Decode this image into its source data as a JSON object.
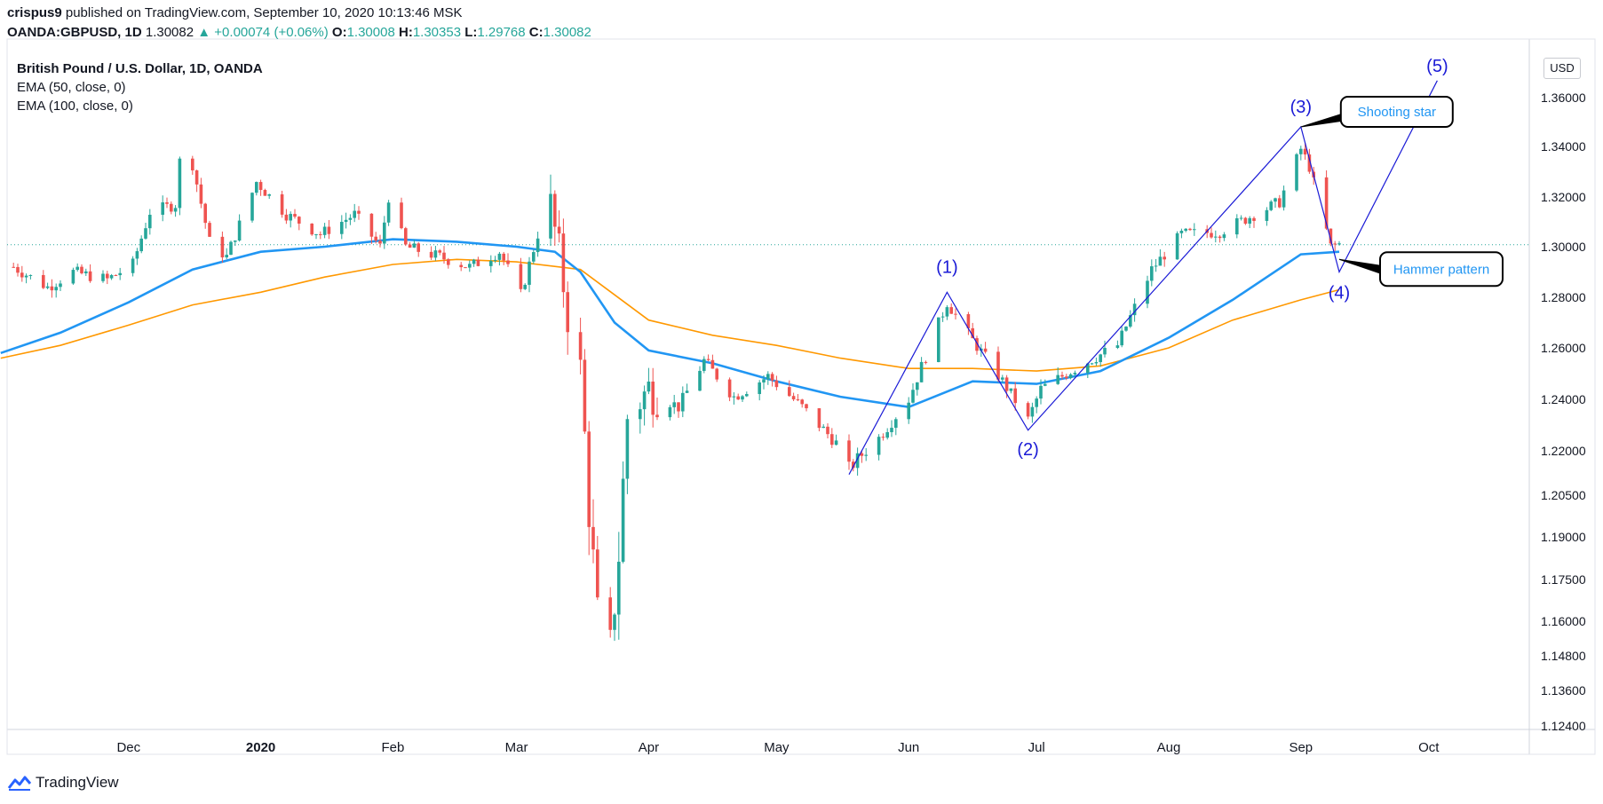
{
  "header": {
    "author": "crispus9",
    "published_text": "published on TradingView.com, September 10, 2020 10:13:46 MSK",
    "symbol": "OANDA:GBPUSD, 1D",
    "last": "1.30082",
    "change": "+0.00074 (+0.06%)",
    "o_label": "O:",
    "o": "1.30008",
    "h_label": "H:",
    "h": "1.30353",
    "l_label": "L:",
    "l": "1.29768",
    "c_label": "C:",
    "c": "1.30082"
  },
  "legend": {
    "title": "British Pound / U.S. Dollar, 1D, OANDA",
    "ema50": "EMA (50, close, 0)",
    "ema100": "EMA (100, close, 0)"
  },
  "currency_button": "USD",
  "brand": "TradingView",
  "colors": {
    "bull": "#26a69a",
    "bear": "#ef5350",
    "ema50": "#2196f3",
    "ema100": "#ff9800",
    "wave": "#1a1ad6",
    "callout_text": "#2196f3"
  },
  "chart_data": {
    "type": "candlestick",
    "y_ticks": [
      "1.36000",
      "1.34000",
      "1.32000",
      "1.30000",
      "1.28000",
      "1.26000",
      "1.24000",
      "1.22000",
      "1.20500",
      "1.19000",
      "1.17500",
      "1.16000",
      "1.14800",
      "1.13600",
      "1.12400"
    ],
    "x_ticks": [
      "Dec",
      "2020",
      "Feb",
      "Mar",
      "Apr",
      "May",
      "Jun",
      "Jul",
      "Aug",
      "Sep",
      "Oct"
    ],
    "close_path": [
      [
        "2019-11-04",
        1.292
      ],
      [
        "2019-11-12",
        1.284
      ],
      [
        "2019-11-18",
        1.29
      ],
      [
        "2019-11-26",
        1.287
      ],
      [
        "2019-12-02",
        1.293
      ],
      [
        "2019-12-06",
        1.314
      ],
      [
        "2019-12-12",
        1.317
      ],
      [
        "2019-12-13",
        1.334
      ],
      [
        "2019-12-16",
        1.333
      ],
      [
        "2019-12-20",
        1.302
      ],
      [
        "2019-12-24",
        1.296
      ],
      [
        "2019-12-31",
        1.326
      ],
      [
        "2020-01-07",
        1.313
      ],
      [
        "2020-01-15",
        1.305
      ],
      [
        "2020-01-23",
        1.313
      ],
      [
        "2020-01-29",
        1.3
      ],
      [
        "2020-01-31",
        1.32
      ],
      [
        "2020-02-04",
        1.3
      ],
      [
        "2020-02-12",
        1.296
      ],
      [
        "2020-02-19",
        1.292
      ],
      [
        "2020-02-26",
        1.298
      ],
      [
        "2020-03-02",
        1.281
      ],
      [
        "2020-03-06",
        1.305
      ],
      [
        "2020-03-09",
        1.316
      ],
      [
        "2020-03-11",
        1.297
      ],
      [
        "2020-03-13",
        1.273
      ],
      [
        "2020-03-16",
        1.251
      ],
      [
        "2020-03-18",
        1.2
      ],
      [
        "2020-03-20",
        1.162
      ],
      [
        "2020-03-23",
        1.15
      ],
      [
        "2020-03-25",
        1.184
      ],
      [
        "2020-03-27",
        1.233
      ],
      [
        "2020-04-01",
        1.244
      ],
      [
        "2020-04-08",
        1.237
      ],
      [
        "2020-04-14",
        1.255
      ],
      [
        "2020-04-21",
        1.241
      ],
      [
        "2020-04-29",
        1.249
      ],
      [
        "2020-05-07",
        1.237
      ],
      [
        "2020-05-15",
        1.223
      ],
      [
        "2020-05-18",
        1.214
      ],
      [
        "2020-05-25",
        1.225
      ],
      [
        "2020-06-01",
        1.24
      ],
      [
        "2020-06-10",
        1.278
      ],
      [
        "2020-06-16",
        1.263
      ],
      [
        "2020-06-23",
        1.247
      ],
      [
        "2020-06-29",
        1.232
      ],
      [
        "2020-07-02",
        1.244
      ],
      [
        "2020-07-10",
        1.252
      ],
      [
        "2020-07-20",
        1.261
      ],
      [
        "2020-07-28",
        1.291
      ],
      [
        "2020-08-04",
        1.305
      ],
      [
        "2020-08-13",
        1.306
      ],
      [
        "2020-08-20",
        1.312
      ],
      [
        "2020-08-27",
        1.318
      ],
      [
        "2020-09-01",
        1.339
      ],
      [
        "2020-09-03",
        1.332
      ],
      [
        "2020-09-08",
        1.3
      ],
      [
        "2020-09-10",
        1.301
      ]
    ],
    "ema50_path": [
      [
        "2019-11-01",
        1.258
      ],
      [
        "2019-11-15",
        1.266
      ],
      [
        "2019-12-01",
        1.278
      ],
      [
        "2019-12-16",
        1.291
      ],
      [
        "2020-01-01",
        1.298
      ],
      [
        "2020-01-16",
        1.3
      ],
      [
        "2020-02-01",
        1.303
      ],
      [
        "2020-02-16",
        1.302
      ],
      [
        "2020-03-01",
        1.3
      ],
      [
        "2020-03-10",
        1.298
      ],
      [
        "2020-03-16",
        1.29
      ],
      [
        "2020-03-24",
        1.27
      ],
      [
        "2020-04-01",
        1.259
      ],
      [
        "2020-04-16",
        1.254
      ],
      [
        "2020-05-01",
        1.247
      ],
      [
        "2020-05-16",
        1.241
      ],
      [
        "2020-06-01",
        1.237
      ],
      [
        "2020-06-16",
        1.247
      ],
      [
        "2020-07-01",
        1.246
      ],
      [
        "2020-07-16",
        1.251
      ],
      [
        "2020-08-01",
        1.264
      ],
      [
        "2020-08-16",
        1.279
      ],
      [
        "2020-09-01",
        1.297
      ],
      [
        "2020-09-10",
        1.298
      ]
    ],
    "ema100_path": [
      [
        "2019-11-01",
        1.256
      ],
      [
        "2019-11-15",
        1.261
      ],
      [
        "2019-12-01",
        1.269
      ],
      [
        "2019-12-16",
        1.277
      ],
      [
        "2020-01-01",
        1.282
      ],
      [
        "2020-01-16",
        1.288
      ],
      [
        "2020-02-01",
        1.293
      ],
      [
        "2020-02-16",
        1.295
      ],
      [
        "2020-03-01",
        1.294
      ],
      [
        "2020-03-16",
        1.291
      ],
      [
        "2020-04-01",
        1.271
      ],
      [
        "2020-04-16",
        1.265
      ],
      [
        "2020-05-01",
        1.261
      ],
      [
        "2020-05-16",
        1.256
      ],
      [
        "2020-06-01",
        1.252
      ],
      [
        "2020-06-16",
        1.252
      ],
      [
        "2020-07-01",
        1.251
      ],
      [
        "2020-07-16",
        1.253
      ],
      [
        "2020-08-01",
        1.26
      ],
      [
        "2020-08-16",
        1.271
      ],
      [
        "2020-09-01",
        1.279
      ],
      [
        "2020-09-10",
        1.283
      ]
    ],
    "last_price_line": 1.30082,
    "wave": {
      "points": [
        [
          "2020-05-18",
          1.212
        ],
        [
          "2020-06-10",
          1.282
        ],
        [
          "2020-06-29",
          1.228
        ],
        [
          "2020-09-01",
          1.348
        ],
        [
          "2020-09-10",
          1.29
        ],
        [
          "2020-10-03",
          1.367
        ]
      ],
      "labels": [
        "(1)",
        "(2)",
        "(3)",
        "(4)",
        "(5)"
      ]
    },
    "annotations": [
      {
        "label": "Shooting star",
        "date": "2020-09-01",
        "price": 1.348
      },
      {
        "label": "Hammer pattern",
        "date": "2020-09-10",
        "price": 1.295
      }
    ]
  }
}
